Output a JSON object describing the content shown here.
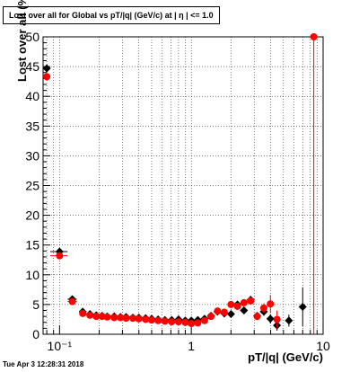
{
  "page": {
    "title_text": "Lost over all for Global vs pT/|q| (GeV/c) at |  η |  <= 1.0",
    "datestamp": "Tue Apr  3 12:28:31 2018"
  },
  "chart_data": {
    "type": "scatter",
    "title": "Lost over all for Global vs pT/|q| (GeV/c) at |  η |  <= 1.0",
    "xlabel": "pT/|q| (GeV/c)",
    "ylabel": "Lost over all (%)",
    "x_scale": "log",
    "xlim": [
      0.075,
      10
    ],
    "ylim": [
      0,
      50
    ],
    "x_ticks": [
      {
        "value": 0.1,
        "label": "10⁻¹"
      },
      {
        "value": 1,
        "label": "1"
      },
      {
        "value": 10,
        "label": "10"
      }
    ],
    "y_ticks": [
      0,
      5,
      10,
      15,
      20,
      25,
      30,
      35,
      40,
      45,
      50
    ],
    "grid": true,
    "series": [
      {
        "color": "#000000",
        "marker": "diamond",
        "points": [
          {
            "x": 0.08,
            "y": 44.7,
            "xerr": 0.005,
            "yerr": 0.6
          },
          {
            "x": 0.1,
            "y": 13.9,
            "xerr": 0.015,
            "yerr": 0.4
          },
          {
            "x": 0.125,
            "y": 5.9,
            "xerr": 0.01,
            "yerr": 0.3
          },
          {
            "x": 0.15,
            "y": 3.8,
            "yerr": 0.2
          },
          {
            "x": 0.17,
            "y": 3.4,
            "yerr": 0.15
          },
          {
            "x": 0.19,
            "y": 3.2,
            "yerr": 0.12
          },
          {
            "x": 0.21,
            "y": 3.1,
            "yerr": 0.1
          },
          {
            "x": 0.23,
            "y": 3.0,
            "yerr": 0.1
          },
          {
            "x": 0.26,
            "y": 3.0,
            "yerr": 0.1
          },
          {
            "x": 0.29,
            "y": 2.9,
            "yerr": 0.1
          },
          {
            "x": 0.32,
            "y": 2.9,
            "yerr": 0.1
          },
          {
            "x": 0.36,
            "y": 2.8,
            "yerr": 0.1
          },
          {
            "x": 0.4,
            "y": 2.8,
            "yerr": 0.1
          },
          {
            "x": 0.45,
            "y": 2.7,
            "yerr": 0.1
          },
          {
            "x": 0.5,
            "y": 2.6,
            "yerr": 0.1
          },
          {
            "x": 0.56,
            "y": 2.5,
            "yerr": 0.1
          },
          {
            "x": 0.63,
            "y": 2.4,
            "yerr": 0.1
          },
          {
            "x": 0.71,
            "y": 2.4,
            "yerr": 0.1
          },
          {
            "x": 0.8,
            "y": 2.5,
            "yerr": 0.1
          },
          {
            "x": 0.9,
            "y": 2.3,
            "yerr": 0.1
          },
          {
            "x": 1.0,
            "y": 2.3,
            "yerr": 0.15
          },
          {
            "x": 1.12,
            "y": 2.4,
            "yerr": 0.15
          },
          {
            "x": 1.26,
            "y": 2.6,
            "yerr": 0.2
          },
          {
            "x": 1.41,
            "y": 3.1,
            "yerr": 0.25
          },
          {
            "x": 1.58,
            "y": 3.8,
            "yerr": 0.3
          },
          {
            "x": 1.78,
            "y": 3.5,
            "yerr": 0.35
          },
          {
            "x": 2.0,
            "y": 3.4,
            "yerr": 0.4
          },
          {
            "x": 2.24,
            "y": 5.0,
            "yerr": 0.5
          },
          {
            "x": 2.51,
            "y": 4.0,
            "yerr": 0.5
          },
          {
            "x": 2.82,
            "y": 5.8,
            "yerr": 0.6
          },
          {
            "x": 3.16,
            "y": 3.1,
            "yerr": 0.6
          },
          {
            "x": 3.55,
            "y": 3.8,
            "yerr": 0.7
          },
          {
            "x": 3.98,
            "y": 2.6,
            "yerr": 0.8
          },
          {
            "x": 4.47,
            "y": 1.5,
            "yerr": 0.9
          },
          {
            "x": 5.5,
            "y": 2.3,
            "yerr": 1.0
          },
          {
            "x": 7.0,
            "y": 4.6,
            "yerr": 3.3
          }
        ]
      },
      {
        "color": "#ff0000",
        "marker": "circle",
        "points": [
          {
            "x": 0.08,
            "y": 43.3,
            "xerr": 0.005,
            "yerr": 0.6
          },
          {
            "x": 0.1,
            "y": 13.2,
            "xerr": 0.015,
            "yerr": 0.4
          },
          {
            "x": 0.125,
            "y": 5.5,
            "xerr": 0.01,
            "yerr": 0.3
          },
          {
            "x": 0.15,
            "y": 3.5,
            "yerr": 0.2
          },
          {
            "x": 0.17,
            "y": 3.2,
            "yerr": 0.15
          },
          {
            "x": 0.19,
            "y": 3.0,
            "yerr": 0.12
          },
          {
            "x": 0.21,
            "y": 3.0,
            "yerr": 0.1
          },
          {
            "x": 0.23,
            "y": 2.9,
            "yerr": 0.1
          },
          {
            "x": 0.26,
            "y": 2.8,
            "yerr": 0.1
          },
          {
            "x": 0.29,
            "y": 2.8,
            "yerr": 0.1
          },
          {
            "x": 0.32,
            "y": 2.7,
            "yerr": 0.1
          },
          {
            "x": 0.36,
            "y": 2.7,
            "yerr": 0.1
          },
          {
            "x": 0.4,
            "y": 2.6,
            "yerr": 0.1
          },
          {
            "x": 0.45,
            "y": 2.5,
            "yerr": 0.1
          },
          {
            "x": 0.5,
            "y": 2.4,
            "yerr": 0.1
          },
          {
            "x": 0.56,
            "y": 2.3,
            "yerr": 0.1
          },
          {
            "x": 0.63,
            "y": 2.2,
            "yerr": 0.1
          },
          {
            "x": 0.71,
            "y": 2.1,
            "yerr": 0.1
          },
          {
            "x": 0.8,
            "y": 2.1,
            "yerr": 0.1
          },
          {
            "x": 0.9,
            "y": 2.0,
            "yerr": 0.1
          },
          {
            "x": 1.0,
            "y": 1.8,
            "yerr": 0.15
          },
          {
            "x": 1.12,
            "y": 1.9,
            "yerr": 0.15
          },
          {
            "x": 1.26,
            "y": 2.3,
            "yerr": 0.2
          },
          {
            "x": 1.41,
            "y": 3.0,
            "yerr": 0.25
          },
          {
            "x": 1.58,
            "y": 3.9,
            "yerr": 0.3
          },
          {
            "x": 1.78,
            "y": 3.7,
            "yerr": 0.35
          },
          {
            "x": 2.0,
            "y": 5.0,
            "yerr": 0.4
          },
          {
            "x": 2.24,
            "y": 4.7,
            "yerr": 0.5
          },
          {
            "x": 2.51,
            "y": 5.3,
            "yerr": 0.5
          },
          {
            "x": 2.82,
            "y": 5.6,
            "yerr": 0.6
          },
          {
            "x": 3.16,
            "y": 3.0,
            "yerr": 0.6
          },
          {
            "x": 3.55,
            "y": 4.4,
            "yerr": 0.8
          },
          {
            "x": 3.98,
            "y": 5.1,
            "yerr": 1.5
          },
          {
            "x": 4.47,
            "y": 2.5,
            "yerr": 1.5
          },
          {
            "x": 8.5,
            "y": 50.0,
            "yerr": 50.0
          }
        ]
      }
    ]
  }
}
